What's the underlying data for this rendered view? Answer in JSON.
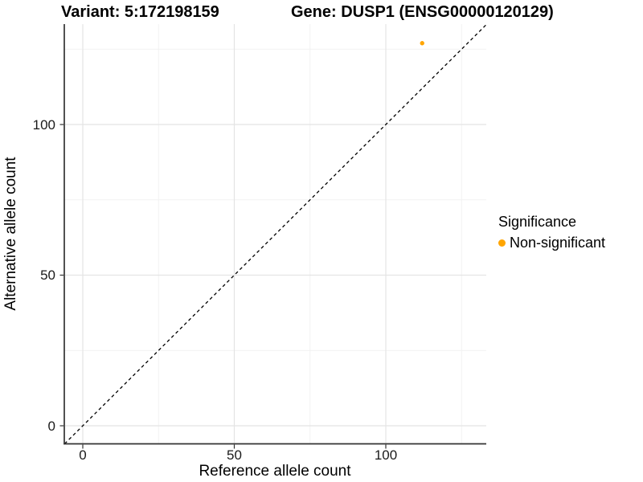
{
  "chart_data": {
    "type": "scatter",
    "title_left": "Variant: 5:172198159",
    "title_right": "Gene: DUSP1 (ENSG00000120129)",
    "xlabel": "Reference allele count",
    "ylabel": "Alternative allele count",
    "x_ticks": [
      0,
      50,
      100
    ],
    "y_ticks": [
      0,
      50,
      100
    ],
    "x_minor_ticks": [
      25,
      75,
      125
    ],
    "y_minor_ticks": [
      25,
      75,
      125
    ],
    "xlim": [
      -6.1,
      133.3
    ],
    "ylim": [
      -6.1,
      133.3
    ],
    "grid": "major+minor",
    "series": [
      {
        "name": "Non-significant",
        "color": "#FFA500",
        "points": [
          {
            "x": 112,
            "y": 127
          }
        ]
      }
    ],
    "identity_line": {
      "equation": "y = x",
      "style": "dashed",
      "color": "#000000"
    },
    "legend": {
      "title": "Significance",
      "position": "right",
      "entries": [
        {
          "label": "Non-significant",
          "color": "#FFA500"
        }
      ]
    },
    "colors": {
      "background": "#FFFFFF",
      "grid_major": "#E4E4E4",
      "grid_minor": "#F2F2F2",
      "axis": "#333333",
      "tick_text": "#1A1A1A",
      "title_text": "#000000"
    }
  }
}
